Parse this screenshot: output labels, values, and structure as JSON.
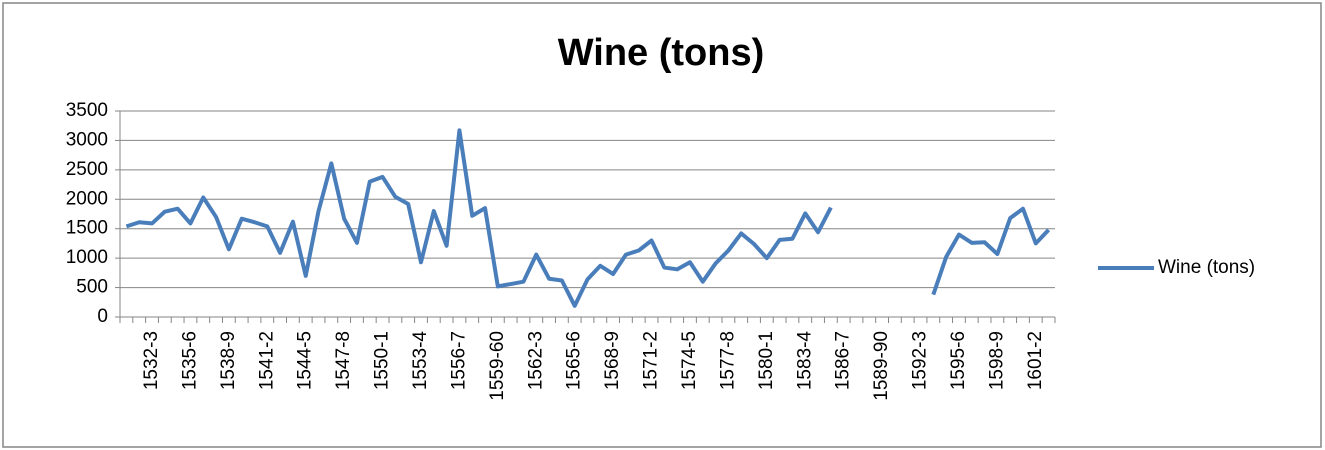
{
  "chart_data": {
    "type": "line",
    "title": "Wine (tons)",
    "categories": [
      null,
      null,
      "1532-3",
      null,
      null,
      "1535-6",
      null,
      null,
      "1538-9",
      null,
      null,
      "1541-2",
      null,
      null,
      "1544-5",
      null,
      null,
      "1547-8",
      null,
      null,
      "1550-1",
      null,
      null,
      "1553-4",
      null,
      null,
      "1556-7",
      null,
      null,
      "1559-60",
      null,
      null,
      "1562-3",
      null,
      null,
      "1565-6",
      null,
      null,
      "1568-9",
      null,
      null,
      "1571-2",
      null,
      null,
      "1574-5",
      null,
      null,
      "1577-8",
      null,
      null,
      "1580-1",
      null,
      null,
      "1583-4",
      null,
      null,
      "1586-7",
      null,
      null,
      "1589-90",
      null,
      null,
      "1592-3",
      null,
      null,
      "1595-6",
      null,
      null,
      "1598-9",
      null,
      null,
      "1601-2",
      null
    ],
    "series": [
      {
        "name": "Wine (tons)",
        "color": "#4a7ebb",
        "values": [
          1540,
          1610,
          1590,
          1790,
          1840,
          1590,
          2030,
          1700,
          1150,
          1670,
          1610,
          1540,
          1090,
          1620,
          700,
          1800,
          2610,
          1670,
          1260,
          2300,
          2380,
          2040,
          1920,
          930,
          1800,
          1210,
          3170,
          1720,
          1850,
          520,
          560,
          600,
          1060,
          650,
          620,
          190,
          640,
          870,
          730,
          1060,
          1130,
          1300,
          840,
          810,
          930,
          600,
          910,
          1130,
          1420,
          1240,
          1000,
          1310,
          1330,
          1760,
          1440,
          1860,
          null,
          null,
          null,
          null,
          null,
          null,
          null,
          380,
          1020,
          1400,
          1260,
          1270,
          1070,
          1680,
          1840,
          1250,
          1480
        ]
      }
    ],
    "ylim": [
      0,
      3500
    ],
    "yticks": [
      0,
      500,
      1000,
      1500,
      2000,
      2500,
      3000,
      3500
    ],
    "grid": true,
    "legend": "right"
  }
}
